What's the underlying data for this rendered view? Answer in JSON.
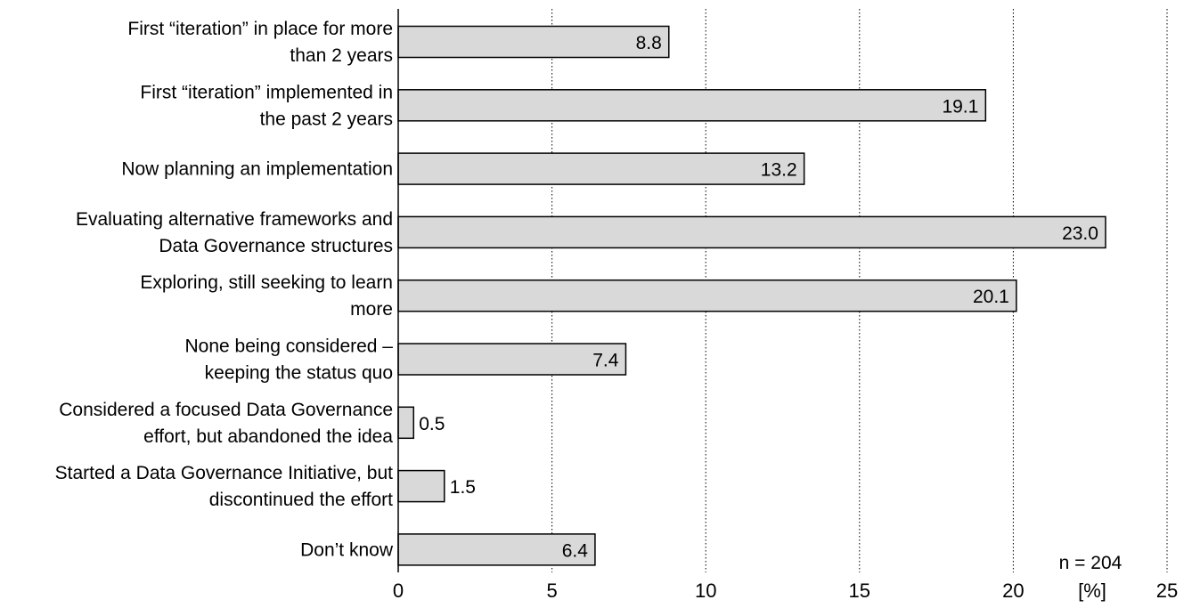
{
  "chart_data": {
    "type": "bar",
    "orientation": "horizontal",
    "categories": [
      [
        "First “iteration” in place for more",
        "than 2 years"
      ],
      [
        "First “iteration” implemented in",
        "the past 2 years"
      ],
      [
        "Now planning an implementation"
      ],
      [
        "Evaluating alternative frameworks and",
        "Data Governance structures"
      ],
      [
        "Exploring, still seeking to learn",
        "more"
      ],
      [
        "None being considered –",
        "keeping the status quo"
      ],
      [
        "Considered a focused Data Governance",
        "effort, but abandoned the idea"
      ],
      [
        "Started a Data Governance Initiative, but",
        "discontinued the effort"
      ],
      [
        "Don’t know"
      ]
    ],
    "values": [
      8.8,
      19.1,
      13.2,
      23.0,
      20.1,
      7.4,
      0.5,
      1.5,
      6.4
    ],
    "value_labels": [
      "8.8",
      "19.1",
      "13.2",
      "23.0",
      "20.1",
      "7.4",
      "0.5",
      "1.5",
      "6.4"
    ],
    "xlim": [
      0,
      25
    ],
    "xticks": [
      0,
      5,
      10,
      15,
      20,
      25
    ],
    "xtick_labels": [
      "0",
      "5",
      "10",
      "15",
      "20",
      "25"
    ],
    "unit_label": "[%]",
    "sample_note": "n = 204",
    "grid": "vertical dotted",
    "colors": {
      "bar_fill": "#d9d9d9",
      "bar_stroke": "#000000",
      "grid": "#000000"
    }
  }
}
